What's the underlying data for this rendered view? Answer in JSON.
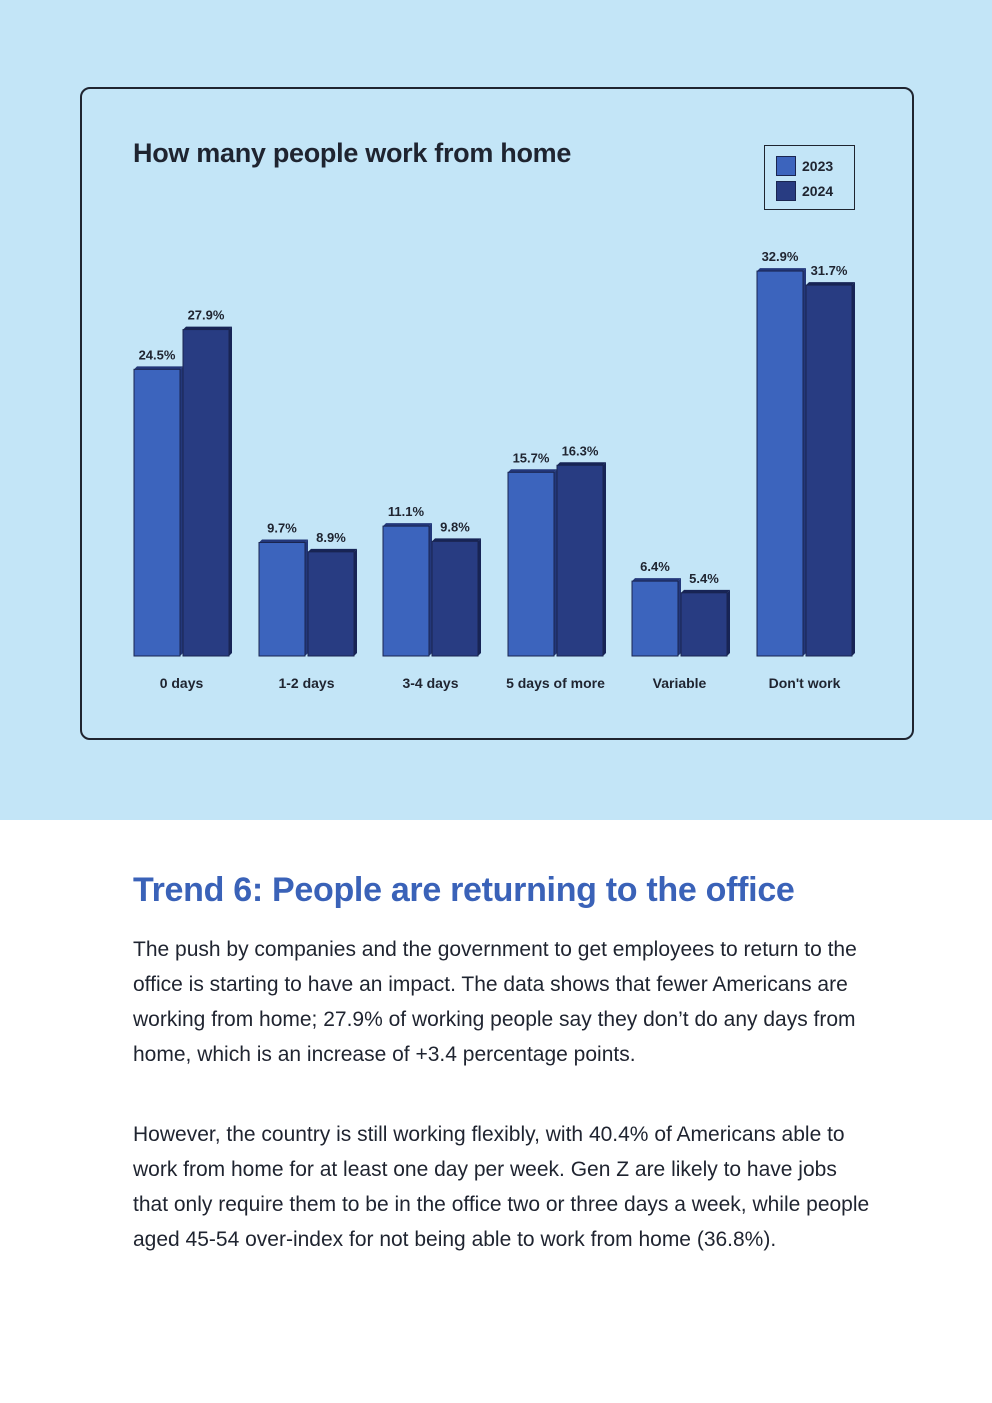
{
  "chart_data": {
    "type": "bar",
    "title": "How many people work from home",
    "categories": [
      "0 days",
      "1-2 days",
      "3-4 days",
      "5 days of more",
      "Variable",
      "Don't work"
    ],
    "series": [
      {
        "name": "2023",
        "color": "#3c64bd",
        "values": [
          24.5,
          9.7,
          11.1,
          15.7,
          6.4,
          32.9
        ],
        "labels": [
          "24.5%",
          "9.7%",
          "11.1%",
          "15.7%",
          "6.4%",
          "32.9%"
        ]
      },
      {
        "name": "2024",
        "color": "#283c82",
        "values": [
          27.9,
          8.9,
          9.8,
          16.3,
          5.4,
          31.7
        ],
        "labels": [
          "27.9%",
          "8.9%",
          "9.8%",
          "16.3%",
          "5.4%",
          "31.7%"
        ]
      }
    ],
    "ylim": [
      0,
      33
    ],
    "xlabel": "",
    "ylabel": "",
    "legend_position": "top-right",
    "grid": false
  },
  "colors": {
    "band": "#c3e5f7",
    "accent": "#3a62b8",
    "text": "#1f2430"
  },
  "article": {
    "heading": "Trend 6: People are returning to the office",
    "paragraph_1": "The push by companies and the government to get employees to return to the office is starting to have an impact. The data shows that fewer Americans are working from home; 27.9% of working people say they don’t do any days from home, which is an increase of +3.4 percentage points.",
    "paragraph_2": "However, the country is still working flexibly, with 40.4% of Americans able to work from home for at least one day per week. Gen Z are likely to have jobs that only require them to be in the office two or three days a week, while people aged 45-54 over-index for not being able to work from home (36.8%)."
  }
}
